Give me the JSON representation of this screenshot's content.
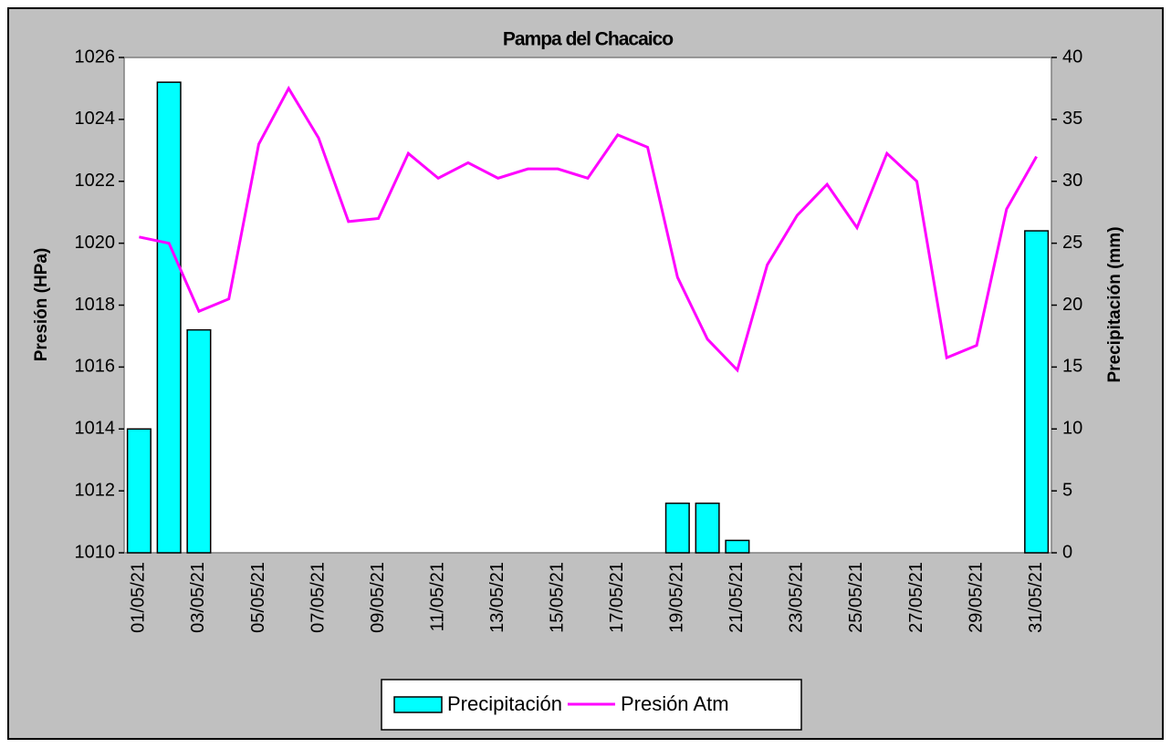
{
  "chart_data": {
    "type": "bar+line",
    "title": "Pampa del Chacaico",
    "y_label": "Presión (HPa)",
    "y2_label": "Precipitación (mm)",
    "categories": [
      "01/05/21",
      null,
      "03/05/21",
      null,
      "05/05/21",
      null,
      "07/05/21",
      null,
      "09/05/21",
      null,
      "11/05/21",
      null,
      "13/05/21",
      null,
      "15/05/21",
      null,
      "17/05/21",
      null,
      "19/05/21",
      null,
      "21/05/21",
      null,
      "23/05/21",
      null,
      "25/05/21",
      null,
      "27/05/21",
      null,
      "29/05/21",
      null,
      "31/05/21"
    ],
    "series": [
      {
        "name": "Precipitación",
        "type": "bar",
        "axis": "y2",
        "color": "#00ffff",
        "values": [
          10,
          38,
          18,
          0,
          0,
          0,
          0,
          0,
          0,
          0,
          0,
          0,
          0,
          0,
          0,
          0,
          0,
          0,
          4,
          4,
          1,
          0,
          0,
          0,
          0,
          0,
          0,
          0,
          0,
          0,
          26
        ]
      },
      {
        "name": "Presión Atm",
        "type": "line",
        "axis": "y",
        "color": "#ff00ff",
        "values": [
          1020.2,
          1020.0,
          1017.8,
          1018.2,
          1023.2,
          1025.0,
          1023.4,
          1020.7,
          1020.8,
          1022.9,
          1022.1,
          1022.6,
          1022.1,
          1022.4,
          1022.4,
          1022.1,
          1023.5,
          1023.1,
          1018.9,
          1016.9,
          1015.9,
          1019.3,
          1020.9,
          1021.9,
          1020.5,
          1022.9,
          1022.0,
          1016.3,
          1016.7,
          1021.1,
          1022.8
        ]
      }
    ],
    "ylim": [
      1010,
      1026
    ],
    "yticks": [
      1010,
      1012,
      1014,
      1016,
      1018,
      1020,
      1022,
      1024,
      1026
    ],
    "y2lim": [
      0,
      40
    ],
    "y2ticks": [
      0,
      5,
      10,
      15,
      20,
      25,
      30,
      35,
      40
    ],
    "grid": false,
    "legend": "bottom"
  }
}
